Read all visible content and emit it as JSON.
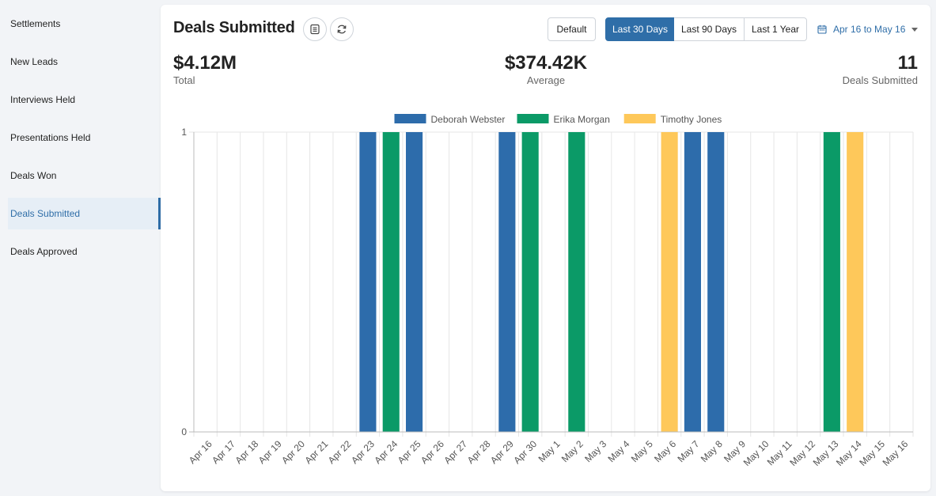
{
  "sidebar": {
    "items": [
      {
        "label": "Settlements",
        "active": false
      },
      {
        "label": "New Leads",
        "active": false
      },
      {
        "label": "Interviews Held",
        "active": false
      },
      {
        "label": "Presentations Held",
        "active": false
      },
      {
        "label": "Deals Won",
        "active": false
      },
      {
        "label": "Deals Submitted",
        "active": true
      },
      {
        "label": "Deals Approved",
        "active": false
      }
    ]
  },
  "header": {
    "title": "Deals Submitted",
    "default_label": "Default",
    "ranges": [
      "Last 30 Days",
      "Last 90 Days",
      "Last 1 Year"
    ],
    "active_range": "Last 30 Days",
    "date_range": "Apr 16 to May 16",
    "icons": [
      "list-icon",
      "refresh-icon",
      "calendar-icon",
      "caret-down-icon"
    ]
  },
  "stats": {
    "total_value": "$4.12M",
    "total_label": "Total",
    "average_value": "$374.42K",
    "average_label": "Average",
    "count_value": "11",
    "count_label": "Deals Submitted"
  },
  "colors": {
    "accent": "#2f6ea8",
    "deborah": "#2d6cab",
    "erika": "#0b9a67",
    "timothy": "#fec85a"
  },
  "chart_data": {
    "type": "bar",
    "categories": [
      "Apr 16",
      "Apr 17",
      "Apr 18",
      "Apr 19",
      "Apr 20",
      "Apr 21",
      "Apr 22",
      "Apr 23",
      "Apr 24",
      "Apr 25",
      "Apr 26",
      "Apr 27",
      "Apr 28",
      "Apr 29",
      "Apr 30",
      "May 1",
      "May 2",
      "May 3",
      "May 4",
      "May 5",
      "May 6",
      "May 7",
      "May 8",
      "May 9",
      "May 10",
      "May 11",
      "May 12",
      "May 13",
      "May 14",
      "May 15",
      "May 16"
    ],
    "series": [
      {
        "name": "Deborah Webster",
        "color": "#2d6cab",
        "values": [
          0,
          0,
          0,
          0,
          0,
          0,
          0,
          1,
          0,
          1,
          0,
          0,
          0,
          1,
          0,
          0,
          0,
          0,
          0,
          0,
          0,
          1,
          1,
          0,
          0,
          0,
          0,
          0,
          0,
          0,
          0
        ]
      },
      {
        "name": "Erika Morgan",
        "color": "#0b9a67",
        "values": [
          0,
          0,
          0,
          0,
          0,
          0,
          0,
          0,
          1,
          0,
          0,
          0,
          0,
          0,
          1,
          0,
          1,
          0,
          0,
          0,
          0,
          0,
          0,
          0,
          0,
          0,
          0,
          1,
          0,
          0,
          0
        ]
      },
      {
        "name": "Timothy Jones",
        "color": "#fec85a",
        "values": [
          0,
          0,
          0,
          0,
          0,
          0,
          0,
          0,
          0,
          0,
          0,
          0,
          0,
          0,
          0,
          0,
          0,
          0,
          0,
          0,
          1,
          0,
          0,
          0,
          0,
          0,
          0,
          0,
          1,
          0,
          0
        ]
      }
    ],
    "y_ticks": [
      "0",
      "1"
    ],
    "ylim": [
      0,
      1
    ],
    "grid": true,
    "legend": "top-center"
  }
}
